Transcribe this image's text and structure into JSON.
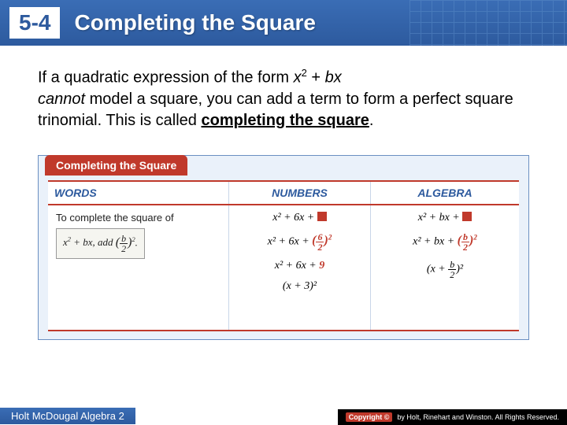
{
  "header": {
    "section": "5-4",
    "title": "Completing the Square",
    "bg_gradient": [
      "#3a6db5",
      "#2d5a9e"
    ]
  },
  "body": {
    "line1_pre": "If a quadratic expression of the form ",
    "expr_x": "x",
    "expr_sq": "2",
    "expr_plus": " + ",
    "expr_bx": "bx",
    "line2_pre": "cannot",
    "line2_rest": " model a square, you can add a term to form a perfect square trinomial. This is called ",
    "key_term": "completing the square",
    "period": "."
  },
  "table": {
    "tab_label": "Completing the Square",
    "headers": {
      "words": "WORDS",
      "numbers": "NUMBERS",
      "algebra": "ALGEBRA"
    },
    "words_intro": "To complete the square of",
    "words_expr_pre": "x",
    "words_expr_plus": " + bx, add ",
    "numbers": {
      "r1_base": "x² + 6x + ",
      "r2_base": "x² + 6x + ",
      "r2_frac_num": "6",
      "r2_frac_den": "2",
      "r3_base": "x² + 6x + ",
      "r3_val": "9",
      "r4": "(x + 3)²"
    },
    "algebra": {
      "r1_base": "x² + bx + ",
      "r2_base": "x² + bx + ",
      "r2_frac_num": "b",
      "r2_frac_den": "2",
      "r3_pre": "(x + ",
      "r3_frac_num": "b",
      "r3_frac_den": "2",
      "r3_post": ")²"
    },
    "colors": {
      "tab_bg": "#c0392b",
      "border": "#c0392b",
      "panel_bg": "#eaf1fa",
      "header_text": "#2d5a9e"
    }
  },
  "footer": {
    "left": "Holt McDougal Algebra 2",
    "copyright_badge": "Copyright ©",
    "copyright_text": "by Holt, Rinehart and Winston. All Rights Reserved."
  }
}
